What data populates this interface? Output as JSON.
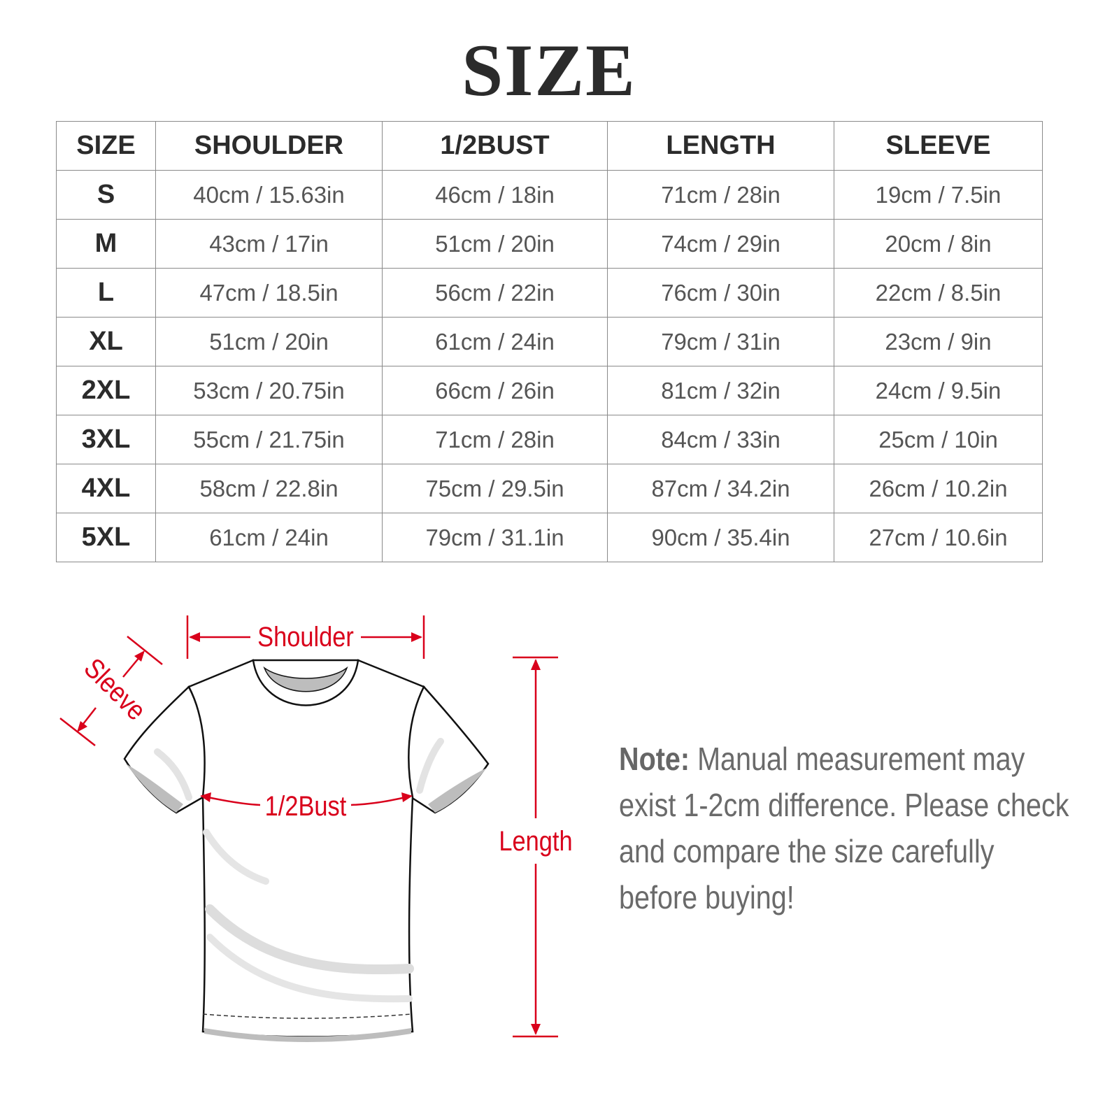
{
  "title": "SIZE",
  "table": {
    "headers": [
      "SIZE",
      "SHOULDER",
      "1/2BUST",
      "LENGTH",
      "SLEEVE"
    ],
    "rows": [
      [
        "S",
        "40cm / 15.63in",
        "46cm / 18in",
        "71cm / 28in",
        "19cm / 7.5in"
      ],
      [
        "M",
        "43cm / 17in",
        "51cm / 20in",
        "74cm / 29in",
        "20cm / 8in"
      ],
      [
        "L",
        "47cm / 18.5in",
        "56cm / 22in",
        "76cm / 30in",
        "22cm / 8.5in"
      ],
      [
        "XL",
        "51cm / 20in",
        "61cm / 24in",
        "79cm / 31in",
        "23cm / 9in"
      ],
      [
        "2XL",
        "53cm / 20.75in",
        "66cm / 26in",
        "81cm / 32in",
        "24cm / 9.5in"
      ],
      [
        "3XL",
        "55cm / 21.75in",
        "71cm / 28in",
        "84cm / 33in",
        "25cm / 10in"
      ],
      [
        "4XL",
        "58cm / 22.8in",
        "75cm / 29.5in",
        "87cm / 34.2in",
        "26cm / 10.2in"
      ],
      [
        "5XL",
        "61cm / 24in",
        "79cm / 31.1in",
        "90cm / 35.4in",
        "27cm / 10.6in"
      ]
    ]
  },
  "diagram": {
    "labels": {
      "shoulder": "Shoulder",
      "sleeve": "Sleeve",
      "bust": "1/2Bust",
      "length": "Length"
    },
    "accent_color": "#d9001b"
  },
  "note": {
    "label": "Note:",
    "text": " Manual measurement may exist 1-2cm difference. Please check and compare the size carefully before buying!"
  }
}
